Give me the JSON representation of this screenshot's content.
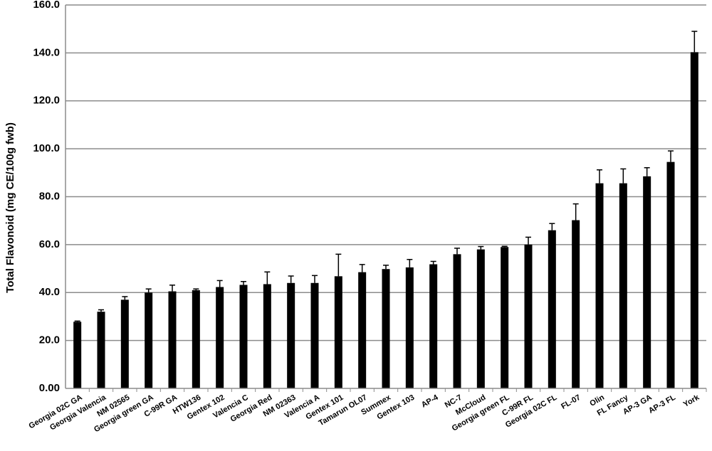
{
  "chart_data": {
    "type": "bar",
    "ylabel": "Total Flavonoid (mg CE/100g fwb)",
    "xlabel": "",
    "ylim": [
      0,
      160
    ],
    "y_ticks": [
      "0.00",
      "20.0",
      "40.0",
      "60.0",
      "80.0",
      "100.0",
      "120.0",
      "140.0",
      "160.0"
    ],
    "grid": true,
    "categories": [
      "Georgia 02C GA",
      "Georgia Valencia",
      "NM 02565",
      "Georgia green GA",
      "C-99R GA",
      "HTW136",
      "Gentex 102",
      "Valencia C",
      "Georgia Red",
      "NM 02363",
      "Valencia A",
      "Gentex 101",
      "Tamarun OL07",
      "Summex",
      "Gentex 103",
      "AP-4",
      "NC-7",
      "McCloud",
      "Georgia green FL",
      "C-99R FL",
      "Georgia 02C FL",
      "FL-07",
      "Olin",
      "FL Fancy",
      "AP-3 GA",
      "AP-3 FL",
      "York"
    ],
    "values": [
      27.8,
      32,
      37,
      40,
      40.5,
      41,
      42.3,
      43.2,
      43.5,
      44,
      44,
      46.8,
      48.5,
      49.8,
      50.5,
      51.8,
      56,
      58,
      59,
      60,
      66,
      70.2,
      85.6,
      85.6,
      88.5,
      94.5,
      140.3
    ],
    "errors": [
      0.3,
      0.8,
      1.3,
      1.5,
      2.6,
      0.5,
      2.7,
      1.4,
      5.1,
      2.9,
      3.1,
      9.2,
      3.2,
      1.6,
      3.3,
      1.2,
      2.5,
      1.2,
      0.3,
      3.1,
      2.8,
      6.8,
      5.6,
      6,
      3.6,
      4.6,
      8.7
    ],
    "bar_color": "#000000",
    "grid_color": "#8c8c8c"
  }
}
